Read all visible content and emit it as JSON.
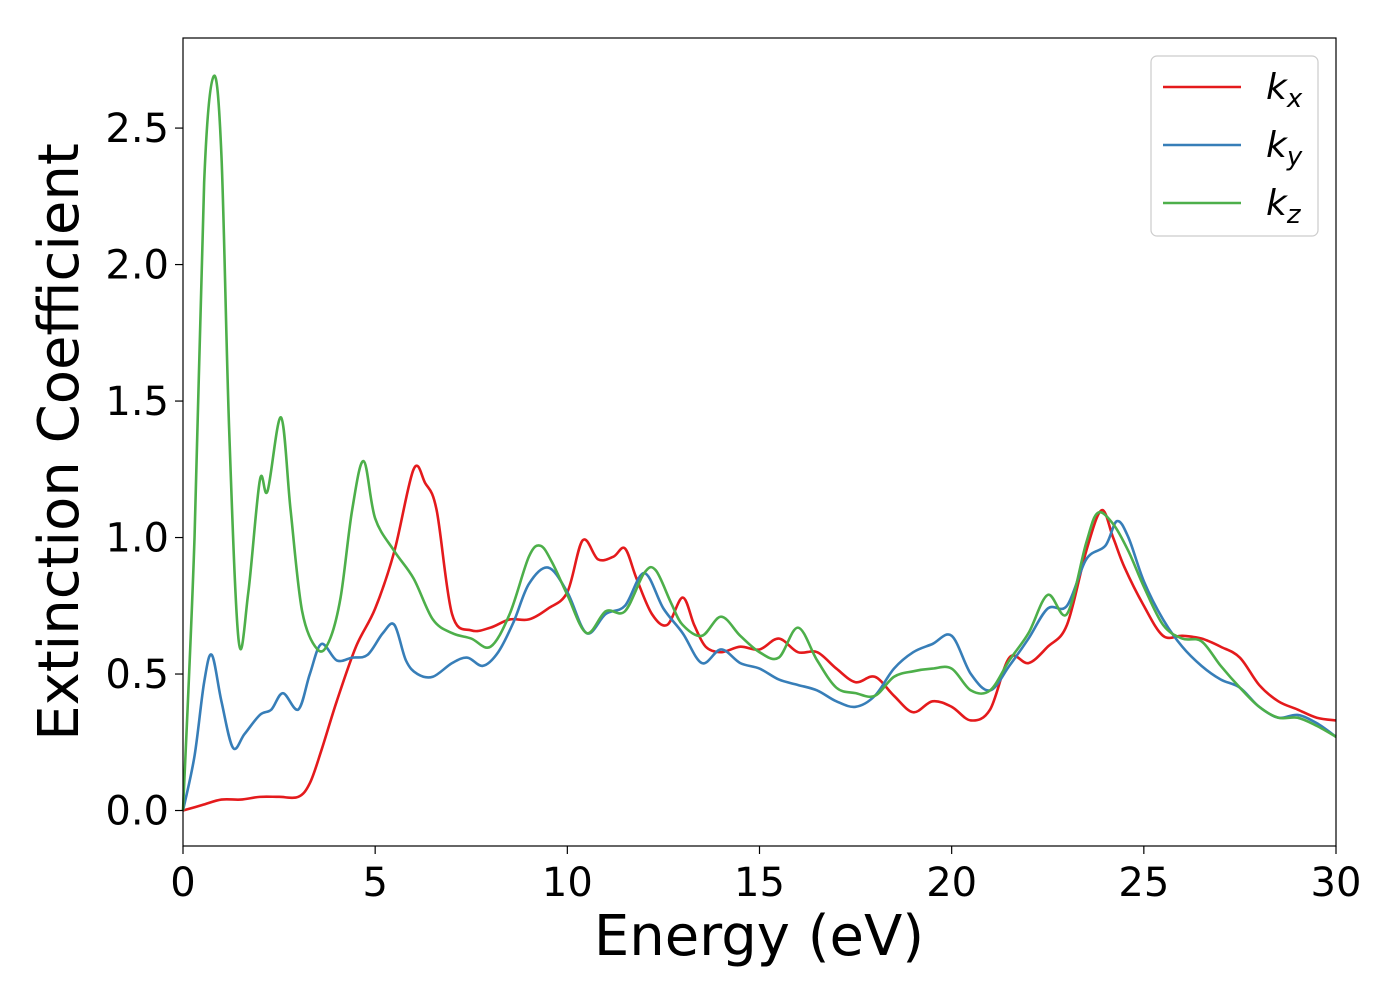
{
  "chart_data": {
    "type": "line",
    "title": "",
    "xlabel": "Energy (eV)",
    "ylabel": "Extinction Coefficient",
    "xlim": [
      0,
      30
    ],
    "ylim": [
      -0.13,
      2.83
    ],
    "xticks": [
      0,
      5,
      10,
      15,
      20,
      25,
      30
    ],
    "xtick_labels": [
      "0",
      "5",
      "10",
      "15",
      "20",
      "25",
      "30"
    ],
    "yticks": [
      0.0,
      0.5,
      1.0,
      1.5,
      2.0,
      2.5
    ],
    "ytick_labels": [
      "0.0",
      "0.5",
      "1.0",
      "1.5",
      "2.0",
      "2.5"
    ],
    "grid": false,
    "legend_position": "top-right",
    "series": [
      {
        "name": "k_x",
        "label_main": "k",
        "label_sub": "x",
        "color": "#e41a1c",
        "x": [
          0,
          0.5,
          1.0,
          1.5,
          2.0,
          2.5,
          3.0,
          3.3,
          3.6,
          4.0,
          4.5,
          5.0,
          5.5,
          6.0,
          6.3,
          6.6,
          7.0,
          7.5,
          8.0,
          8.5,
          9.0,
          9.5,
          10.0,
          10.4,
          10.8,
          11.2,
          11.5,
          11.8,
          12.2,
          12.6,
          13.0,
          13.3,
          13.6,
          14.0,
          14.5,
          15.0,
          15.5,
          16.0,
          16.5,
          17.0,
          17.5,
          18.0,
          18.5,
          19.0,
          19.5,
          20.0,
          20.5,
          21.0,
          21.5,
          22.0,
          22.5,
          23.0,
          23.5,
          23.9,
          24.2,
          24.5,
          25.0,
          25.5,
          26.0,
          26.5,
          27.0,
          27.5,
          28.0,
          28.5,
          29.0,
          29.5,
          30.0
        ],
        "y": [
          0.0,
          0.02,
          0.04,
          0.04,
          0.05,
          0.05,
          0.05,
          0.1,
          0.22,
          0.4,
          0.6,
          0.74,
          0.95,
          1.25,
          1.2,
          1.1,
          0.72,
          0.66,
          0.67,
          0.7,
          0.7,
          0.74,
          0.8,
          0.99,
          0.92,
          0.93,
          0.96,
          0.85,
          0.72,
          0.68,
          0.78,
          0.68,
          0.6,
          0.58,
          0.6,
          0.59,
          0.63,
          0.58,
          0.58,
          0.52,
          0.47,
          0.49,
          0.42,
          0.36,
          0.4,
          0.38,
          0.33,
          0.37,
          0.56,
          0.54,
          0.6,
          0.68,
          0.95,
          1.1,
          1.0,
          0.89,
          0.75,
          0.64,
          0.64,
          0.63,
          0.6,
          0.56,
          0.46,
          0.4,
          0.37,
          0.34,
          0.33
        ]
      },
      {
        "name": "k_y",
        "label_main": "k",
        "label_sub": "y",
        "color": "#377eb8",
        "x": [
          0,
          0.3,
          0.55,
          0.75,
          1.0,
          1.3,
          1.6,
          2.0,
          2.3,
          2.6,
          3.0,
          3.3,
          3.6,
          4.0,
          4.4,
          4.8,
          5.2,
          5.5,
          5.8,
          6.1,
          6.5,
          7.0,
          7.4,
          7.8,
          8.2,
          8.6,
          9.0,
          9.5,
          10.0,
          10.5,
          11.0,
          11.5,
          12.0,
          12.5,
          13.0,
          13.5,
          14.0,
          14.5,
          15.0,
          15.5,
          16.0,
          16.5,
          17.0,
          17.5,
          18.0,
          18.5,
          19.0,
          19.5,
          20.0,
          20.5,
          21.0,
          21.5,
          22.0,
          22.5,
          23.0,
          23.5,
          24.0,
          24.3,
          24.6,
          25.0,
          25.5,
          26.0,
          26.5,
          27.0,
          27.5,
          28.0,
          28.5,
          29.0,
          29.5,
          30.0
        ],
        "y": [
          0.0,
          0.2,
          0.47,
          0.57,
          0.4,
          0.23,
          0.28,
          0.35,
          0.37,
          0.43,
          0.37,
          0.5,
          0.61,
          0.55,
          0.56,
          0.57,
          0.65,
          0.68,
          0.55,
          0.5,
          0.49,
          0.54,
          0.56,
          0.53,
          0.58,
          0.69,
          0.83,
          0.89,
          0.8,
          0.65,
          0.72,
          0.75,
          0.87,
          0.74,
          0.65,
          0.54,
          0.59,
          0.54,
          0.52,
          0.48,
          0.46,
          0.44,
          0.4,
          0.38,
          0.42,
          0.52,
          0.58,
          0.61,
          0.64,
          0.5,
          0.44,
          0.53,
          0.63,
          0.74,
          0.75,
          0.92,
          0.97,
          1.06,
          1.0,
          0.84,
          0.7,
          0.6,
          0.53,
          0.48,
          0.45,
          0.38,
          0.34,
          0.35,
          0.32,
          0.27
        ]
      },
      {
        "name": "k_z",
        "label_main": "k",
        "label_sub": "z",
        "color": "#4daf4a",
        "x": [
          0,
          0.3,
          0.55,
          0.8,
          1.0,
          1.2,
          1.45,
          1.7,
          2.0,
          2.2,
          2.55,
          2.8,
          3.1,
          3.5,
          3.8,
          4.1,
          4.4,
          4.7,
          5.0,
          5.5,
          6.0,
          6.5,
          7.0,
          7.5,
          8.0,
          8.5,
          9.0,
          9.3,
          9.6,
          10.0,
          10.5,
          11.0,
          11.5,
          12.0,
          12.3,
          12.7,
          13.0,
          13.5,
          14.0,
          14.5,
          15.0,
          15.5,
          16.0,
          16.5,
          17.0,
          17.5,
          18.0,
          18.5,
          19.0,
          19.5,
          20.0,
          20.5,
          21.0,
          21.5,
          22.0,
          22.5,
          23.0,
          23.5,
          23.8,
          24.2,
          24.6,
          25.0,
          25.5,
          26.0,
          26.5,
          27.0,
          27.5,
          28.0,
          28.5,
          29.0,
          29.5,
          30.0
        ],
        "y": [
          0.0,
          1.0,
          2.3,
          2.69,
          2.4,
          1.4,
          0.62,
          0.8,
          1.21,
          1.17,
          1.44,
          1.1,
          0.73,
          0.59,
          0.62,
          0.78,
          1.1,
          1.28,
          1.07,
          0.95,
          0.85,
          0.7,
          0.65,
          0.63,
          0.6,
          0.72,
          0.93,
          0.97,
          0.91,
          0.79,
          0.65,
          0.73,
          0.73,
          0.87,
          0.88,
          0.76,
          0.68,
          0.64,
          0.71,
          0.64,
          0.58,
          0.56,
          0.67,
          0.55,
          0.45,
          0.43,
          0.42,
          0.49,
          0.51,
          0.52,
          0.52,
          0.44,
          0.44,
          0.55,
          0.65,
          0.79,
          0.72,
          0.98,
          1.09,
          1.05,
          0.95,
          0.82,
          0.68,
          0.63,
          0.62,
          0.53,
          0.45,
          0.38,
          0.34,
          0.34,
          0.31,
          0.27
        ]
      }
    ]
  }
}
